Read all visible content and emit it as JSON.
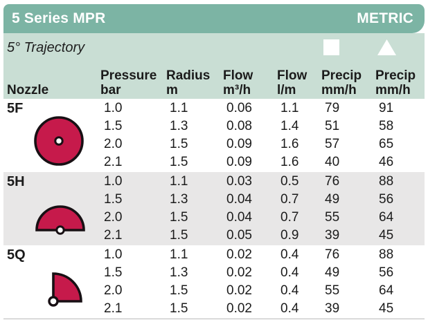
{
  "header": {
    "title": "5 Series MPR",
    "unit_label": "METRIC"
  },
  "table": {
    "trajectory": "5° Trajectory",
    "col_headers": [
      {
        "line1": "Nozzle",
        "line2": ""
      },
      {
        "line1": "Pressure",
        "line2": "bar"
      },
      {
        "line1": "Radius",
        "line2": "m"
      },
      {
        "line1": "Flow",
        "line2": "m³/h"
      },
      {
        "line1": "Flow",
        "line2": "l/m"
      },
      {
        "line1": "Precip",
        "line2": "mm/h",
        "icon": "square-icon"
      },
      {
        "line1": "Precip",
        "line2": "mm/h",
        "icon": "triangle-icon"
      }
    ],
    "groups": [
      {
        "nozzle": "5F",
        "pattern": "full-circle-icon",
        "rows": [
          [
            "1.0",
            "1.1",
            "0.06",
            "1.1",
            "79",
            "91"
          ],
          [
            "1.5",
            "1.3",
            "0.08",
            "1.4",
            "51",
            "58"
          ],
          [
            "2.0",
            "1.5",
            "0.09",
            "1.6",
            "57",
            "65"
          ],
          [
            "2.1",
            "1.5",
            "0.09",
            "1.6",
            "40",
            "46"
          ]
        ]
      },
      {
        "nozzle": "5H",
        "pattern": "half-circle-icon",
        "rows": [
          [
            "1.0",
            "1.1",
            "0.03",
            "0.5",
            "76",
            "88"
          ],
          [
            "1.5",
            "1.3",
            "0.04",
            "0.7",
            "49",
            "56"
          ],
          [
            "2.0",
            "1.5",
            "0.04",
            "0.7",
            "55",
            "64"
          ],
          [
            "2.1",
            "1.5",
            "0.05",
            "0.9",
            "39",
            "45"
          ]
        ]
      },
      {
        "nozzle": "5Q",
        "pattern": "quarter-circle-icon",
        "rows": [
          [
            "1.0",
            "1.1",
            "0.02",
            "0.4",
            "76",
            "88"
          ],
          [
            "1.5",
            "1.3",
            "0.02",
            "0.4",
            "49",
            "56"
          ],
          [
            "2.0",
            "1.5",
            "0.02",
            "0.4",
            "55",
            "64"
          ],
          [
            "2.1",
            "1.5",
            "0.02",
            "0.4",
            "39",
            "45"
          ]
        ]
      }
    ]
  },
  "colors": {
    "header_teal": "#7cb4a4",
    "band_green": "#c9ded4",
    "stripe_gray": "#e8e7e7",
    "nozzle_red": "#c61a4b",
    "outline_black": "#181014"
  }
}
